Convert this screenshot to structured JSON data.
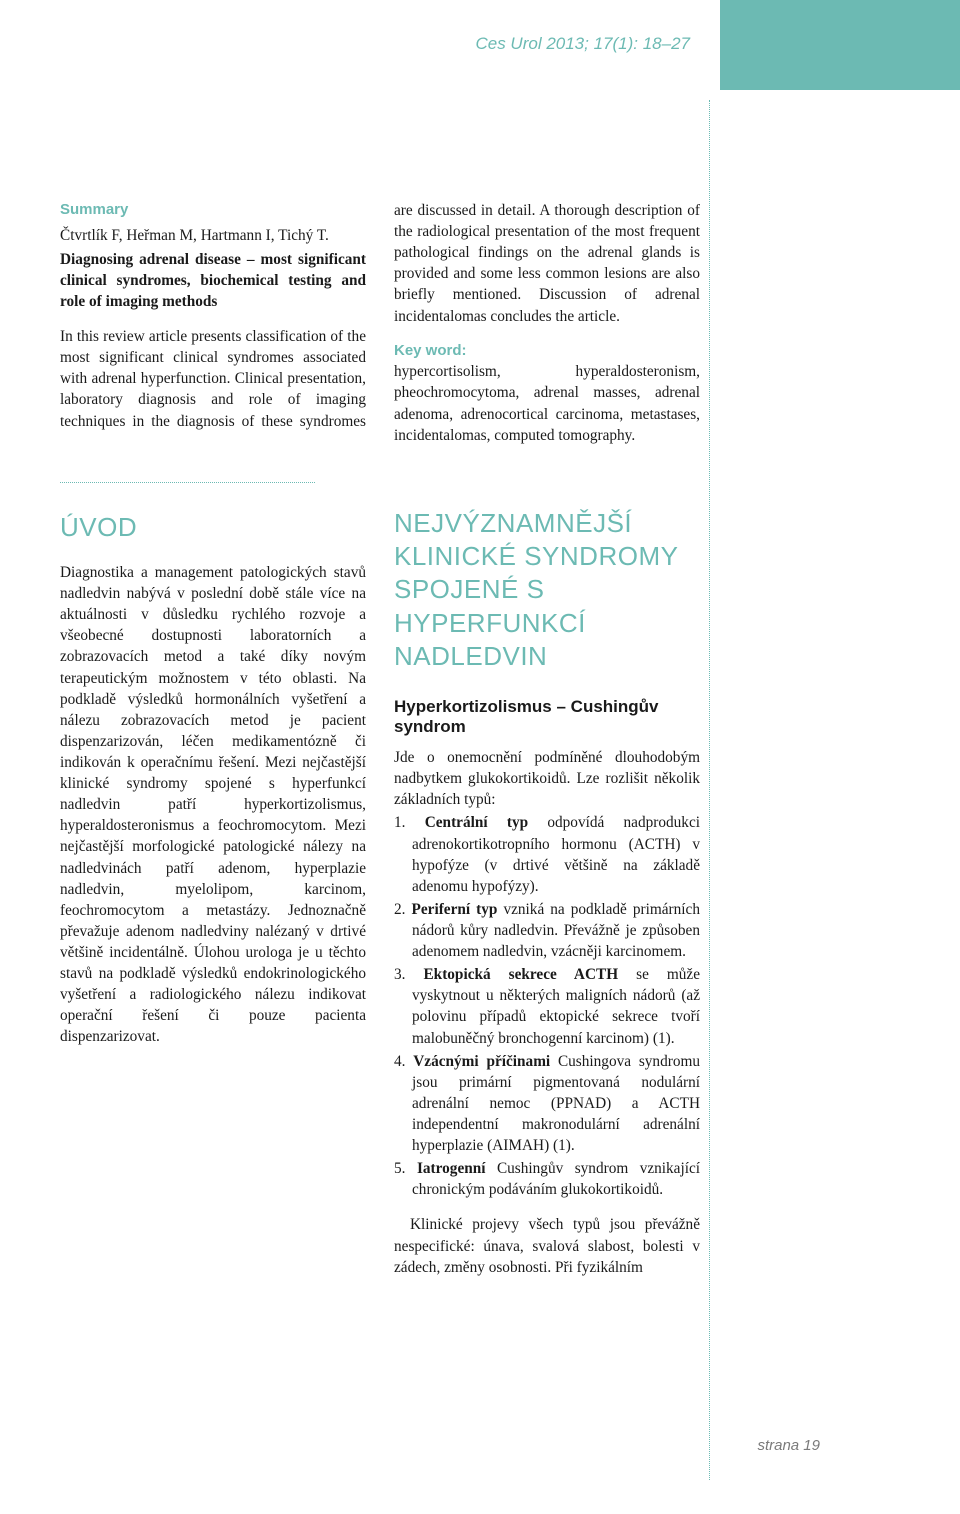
{
  "colors": {
    "accent": "#6cbab3",
    "text": "#1a1a1a",
    "muted": "#7a7a7a",
    "background": "#ffffff"
  },
  "header": {
    "running_head": "Ces Urol 2013; 17(1): 18–27"
  },
  "summary": {
    "label": "Summary",
    "authors": "Čtvrtlík F, Heřman M, Hartmann I, Tichý T.",
    "title": "Diagnosing adrenal disease – most significant clinical syndromes, biochemical testing and role of imaging methods",
    "para1": "In this review article presents classification of the most significant clinical syndromes associated with adrenal hyperfunction. Clinical presentation, laboratory diagnosis and role of imaging techniques in the diagnosis of these syndromes are discussed in detail. A thorough description of the radiological presentation of the most frequent pathological findings on the adrenal glands is provided and some less common lesions are also briefly mentioned. Discussion of adrenal incidentalomas concludes the article.",
    "keyword_label": "Key word:",
    "keywords": "hypercortisolism, hyperaldosteronism, pheochromocytoma, adrenal masses, adrenal adenoma, adrenocortical carcinoma, metastases, incidentalomas, computed tomography."
  },
  "uvod": {
    "heading": "ÚVOD",
    "body": "Diagnostika a management patologických stavů nadledvin nabývá v poslední době stále více na aktuálnosti v důsledku rychlého rozvoje a všeobecné dostupnosti laboratorních a zobrazovacích metod a také díky novým terapeutickým možnostem v této oblasti. Na podkladě výsledků hormonálních vyšetření a nálezu zobrazovacích metod je pacient dispenzarizován, léčen medikamentózně či indikován k operačnímu řešení. Mezi nejčastější klinické syndromy spojené s hyperfunkcí nadledvin patří hyperkortizolismus, hyperaldosteronismus a feochromocytom. Mezi nejčastější morfologické patologické nálezy na nadledvinách patří adenom, hyperplazie nadledvin, myelolipom, karcinom, feochromocytom a metastázy. Jednoznačně převažuje adenom nadledviny nalézaný v drtivé většině incidentálně. Úlohou urologa je u těchto stavů na podkladě výsledků endokrinologického vyšetření a radiologického nálezu indikovat operační řešení či pouze pacienta dispenzarizovat."
  },
  "main_section": {
    "heading": "NEJVÝZNAMNĚJŠÍ KLINICKÉ SYNDROMY SPOJENÉ S HYPERFUNKCÍ NADLEDVIN",
    "sub1": {
      "heading": "Hyperkortizolismus – Cushingův syndrom",
      "intro": "Jde o onemocnění podmíněné dlouhodobým nadbytkem glukokortikoidů. Lze rozlišit několik základních typů:",
      "items": [
        {
          "num": "1.",
          "bold": "Centrální typ",
          "rest": " odpovídá nadprodukci adrenokortikotropního hormonu (ACTH) v hypofýze (v drtivé většině na základě adenomu hypofýzy)."
        },
        {
          "num": "2.",
          "bold": "Periferní typ",
          "rest": " vzniká na podkladě primárních nádorů kůry nadledvin. Převážně je způsoben adenomem nadledvin, vzácněji karcinomem."
        },
        {
          "num": "3.",
          "bold": "Ektopická sekrece ACTH",
          "rest": " se může vyskytnout u některých maligních nádorů (až polovinu případů ektopické sekrece tvoří malobuněčný bronchogenní karcinom) (1)."
        },
        {
          "num": "4.",
          "bold": "Vzácnými příčinami",
          "rest": " Cushingova syndromu jsou primární pigmentovaná nodulární adrenální nemoc (PPNAD) a ACTH independentní makronodulární adrenální hyperplazie (AIMAH) (1)."
        },
        {
          "num": "5.",
          "bold": "Iatrogenní",
          "rest": " Cushingův syndrom vznikající chronickým podáváním glukokortikoidů."
        }
      ],
      "after": "Klinické projevy všech typů jsou převážně nespecifické: únava, svalová slabost, bolesti v zádech, změny osobnosti. Při fyzikálním"
    }
  },
  "footer": {
    "page": "strana 19"
  }
}
